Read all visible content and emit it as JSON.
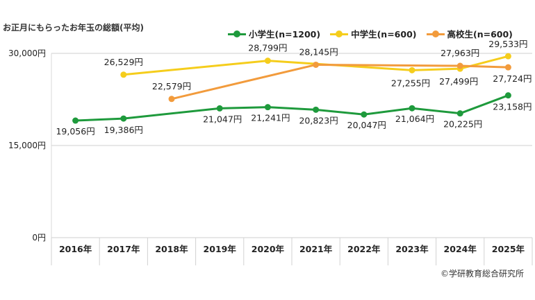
{
  "chart_data": {
    "type": "line",
    "title": "お正月にもらったお年玉の総額(平均)",
    "xlabel": "",
    "ylabel": "",
    "categories": [
      "2016年",
      "2017年",
      "2018年",
      "2019年",
      "2020年",
      "2021年",
      "2022年",
      "2023年",
      "2024年",
      "2025年"
    ],
    "ylim": [
      0,
      30000
    ],
    "yticks": [
      {
        "value": 0,
        "label": "0円"
      },
      {
        "value": 15000,
        "label": "15,000円"
      },
      {
        "value": 30000,
        "label": "30,000円"
      }
    ],
    "legend_position": "top-right",
    "series": [
      {
        "name": "小学生(n=1200)",
        "color": "#1e9a3c",
        "values": [
          19056,
          19386,
          null,
          21047,
          21241,
          20823,
          20047,
          21064,
          20225,
          23158
        ],
        "labels": [
          "19,056円",
          "19,386円",
          null,
          "21,047円",
          "21,241円",
          "20,823円",
          "20,047円",
          "21,064円",
          "20,225円",
          "23,158円"
        ]
      },
      {
        "name": "中学生(n=600)",
        "color": "#f5cd1c",
        "values": [
          null,
          26529,
          null,
          null,
          28799,
          null,
          null,
          27255,
          27499,
          29533
        ],
        "labels": [
          null,
          "26,529円",
          null,
          null,
          "28,799円",
          null,
          null,
          "27,255円",
          "27,499円",
          "29,533円"
        ]
      },
      {
        "name": "高校生(n=600)",
        "color": "#f29b3c",
        "values": [
          null,
          null,
          22579,
          null,
          null,
          28145,
          null,
          null,
          27963,
          27724
        ],
        "labels": [
          null,
          null,
          "22,579円",
          null,
          null,
          "28,145円",
          null,
          null,
          "27,963円",
          "27,724円"
        ]
      }
    ]
  },
  "footer": {
    "copyright": "©学研教育総合研究所"
  }
}
